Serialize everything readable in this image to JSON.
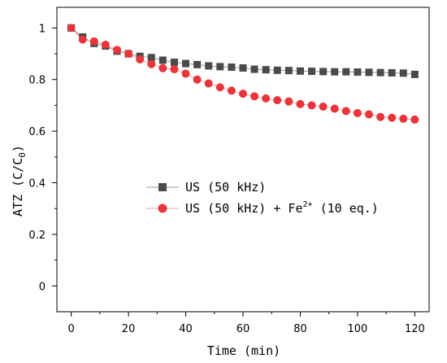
{
  "chart_data": {
    "type": "line",
    "xlabel": "Time (min)",
    "ylabel_main": "ATZ (C/C",
    "ylabel_sub": "0",
    "ylabel_close": ")",
    "xlim": [
      -5,
      125
    ],
    "ylim": [
      -0.1,
      1.08
    ],
    "xticks": [
      0,
      20,
      40,
      60,
      80,
      100,
      120
    ],
    "yticks": [
      0,
      0.2,
      0.4,
      0.6,
      0.8,
      1
    ],
    "ytick_labels": [
      "0",
      "0.2",
      "0.4",
      "0.6",
      "0.8",
      "1"
    ],
    "grid": false,
    "legend_position": "center",
    "x": [
      0,
      4,
      8,
      12,
      16,
      20,
      24,
      28,
      32,
      36,
      40,
      44,
      48,
      52,
      56,
      60,
      64,
      68,
      72,
      76,
      80,
      84,
      88,
      92,
      96,
      100,
      104,
      108,
      112,
      116,
      120
    ],
    "series": [
      {
        "name": "US (50 kHz)",
        "marker": "square",
        "color": "#4a4a4a",
        "line_color": "#9a9a9a",
        "values": [
          1.0,
          0.965,
          0.94,
          0.93,
          0.91,
          0.9,
          0.89,
          0.885,
          0.875,
          0.867,
          0.862,
          0.858,
          0.853,
          0.85,
          0.848,
          0.845,
          0.84,
          0.838,
          0.836,
          0.835,
          0.833,
          0.832,
          0.831,
          0.83,
          0.83,
          0.829,
          0.828,
          0.827,
          0.826,
          0.825,
          0.82
        ]
      },
      {
        "name_main": "US (50 kHz) + Fe",
        "name_sup": "2+",
        "name_tail": " (10 eq.)",
        "marker": "circle",
        "color": "#e8353b",
        "line_color": "#f0a0a0",
        "values": [
          1.0,
          0.955,
          0.948,
          0.935,
          0.915,
          0.9,
          0.878,
          0.86,
          0.844,
          0.84,
          0.823,
          0.8,
          0.785,
          0.77,
          0.757,
          0.745,
          0.735,
          0.727,
          0.72,
          0.715,
          0.705,
          0.7,
          0.695,
          0.687,
          0.678,
          0.67,
          0.665,
          0.655,
          0.652,
          0.648,
          0.645
        ]
      }
    ]
  }
}
